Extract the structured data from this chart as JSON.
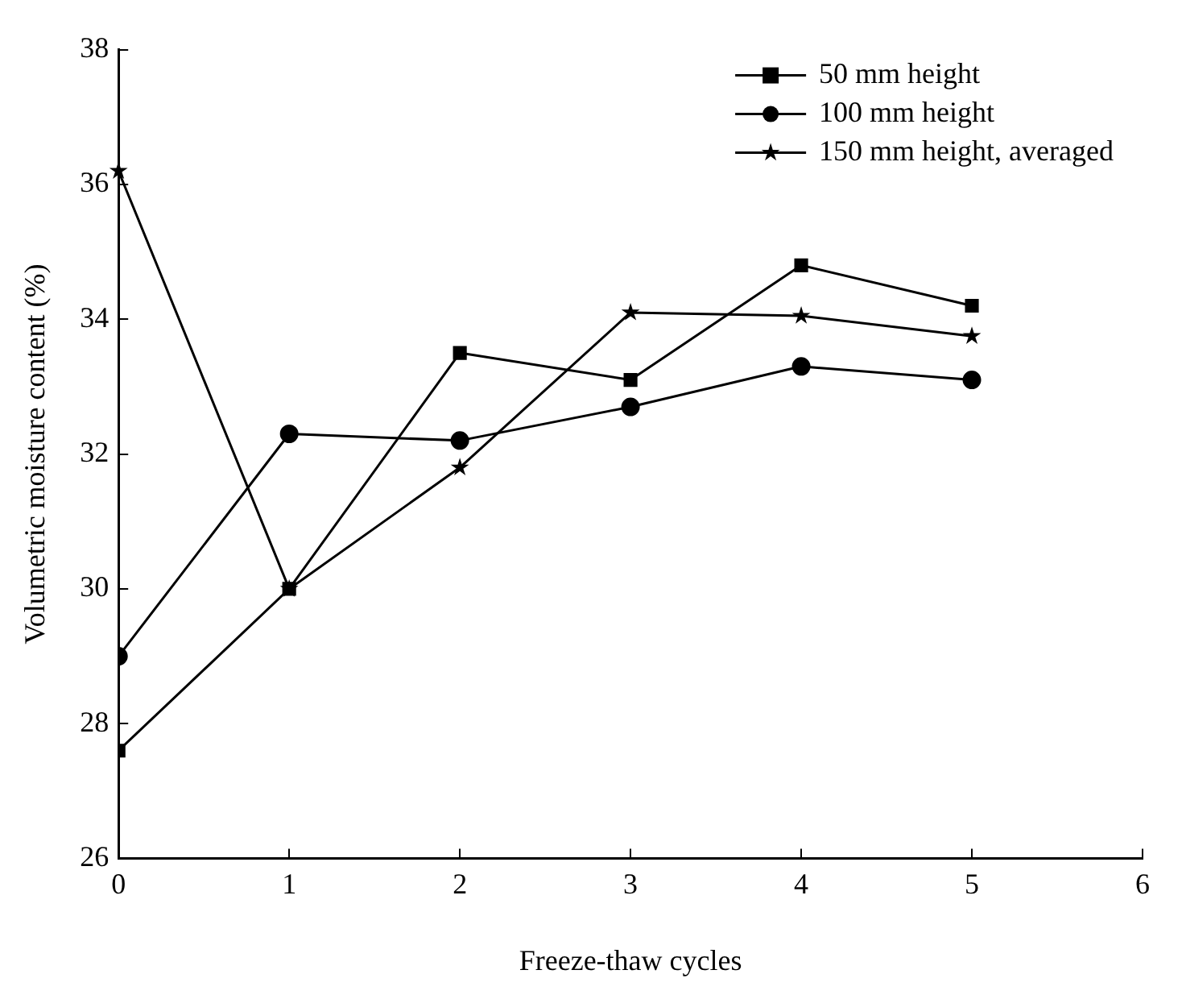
{
  "chart_data": {
    "type": "line",
    "xlabel": "Freeze-thaw cycles",
    "ylabel": "Volumetric moisture content (%)",
    "x": [
      0,
      1,
      2,
      3,
      4,
      5
    ],
    "xlim": [
      0,
      6
    ],
    "xticks": [
      0,
      1,
      2,
      3,
      4,
      5,
      6
    ],
    "ylim": [
      26,
      38
    ],
    "yticks": [
      26,
      28,
      30,
      32,
      34,
      36,
      38
    ],
    "grid": false,
    "legend": "top right",
    "line_style": "solid",
    "series": [
      {
        "name": "50 mm height",
        "color": "#000000",
        "marker": "square",
        "values": [
          27.6,
          30.0,
          33.5,
          33.1,
          34.8,
          34.2
        ]
      },
      {
        "name": "100 mm height",
        "color": "#000000",
        "marker": "circle",
        "values": [
          29.0,
          32.3,
          32.2,
          32.7,
          33.3,
          33.1
        ]
      },
      {
        "name": "150 mm height, averaged",
        "color": "#000000",
        "marker": "star",
        "values": [
          36.2,
          30.0,
          31.8,
          34.1,
          34.05,
          33.75
        ]
      }
    ]
  }
}
